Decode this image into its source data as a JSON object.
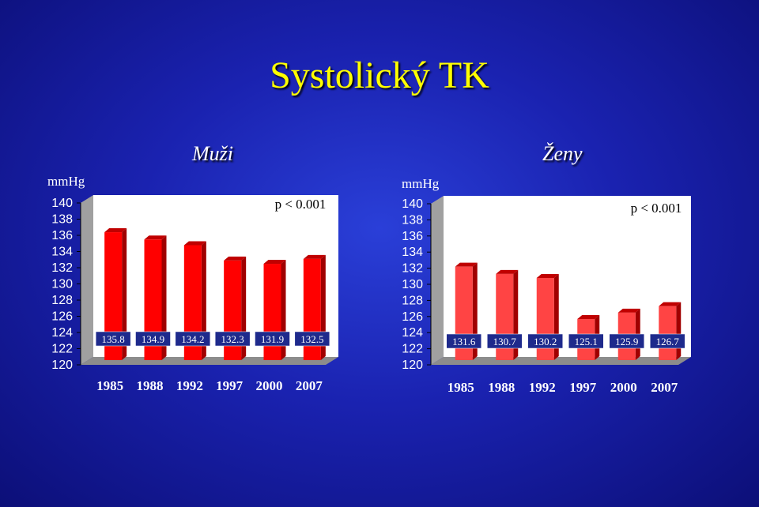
{
  "title": "Systolický TK",
  "colors": {
    "title": "#ffff00",
    "bar": "#ff0000",
    "bar_right": "#ff4444"
  },
  "chart_data": [
    {
      "type": "bar",
      "title": "Muži",
      "ylabel": "mmHg",
      "ylim": [
        120,
        140
      ],
      "yticks": [
        140,
        138,
        136,
        134,
        132,
        130,
        128,
        126,
        124,
        122,
        120
      ],
      "categories": [
        "1985",
        "1988",
        "1992",
        "1997",
        "2000",
        "2007"
      ],
      "values": [
        135.8,
        134.9,
        134.2,
        132.3,
        131.9,
        132.5
      ],
      "data_labels": [
        "135.8",
        "134.9",
        "134.2",
        "132.3",
        "131.9",
        "132.5"
      ],
      "annotation": "p < 0.001"
    },
    {
      "type": "bar",
      "title": "Ženy",
      "ylabel": "mmHg",
      "ylim": [
        120,
        140
      ],
      "yticks": [
        140,
        138,
        136,
        134,
        132,
        130,
        128,
        126,
        124,
        122,
        120
      ],
      "categories": [
        "1985",
        "1988",
        "1992",
        "1997",
        "2000",
        "2007"
      ],
      "values": [
        131.6,
        130.7,
        130.2,
        125.1,
        125.9,
        126.7
      ],
      "data_labels": [
        "131.6",
        "130.7",
        "130.2",
        "125.1",
        "125.9",
        "126.7"
      ],
      "annotation": "p < 0.001"
    }
  ]
}
